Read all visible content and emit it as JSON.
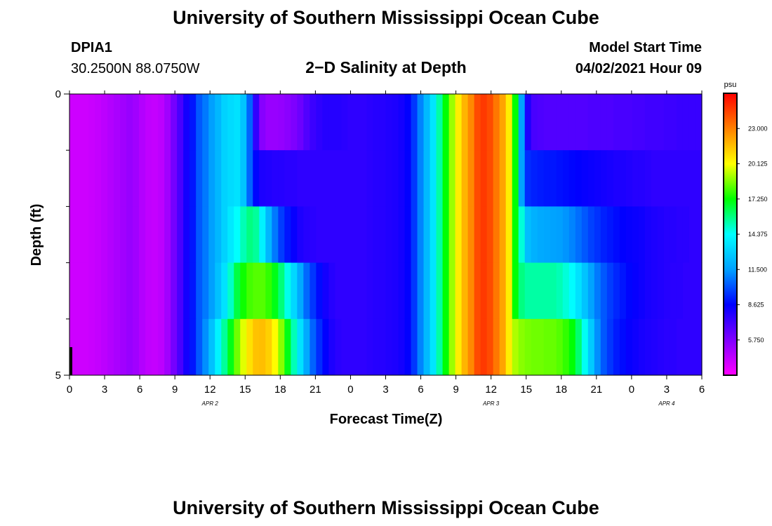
{
  "header": {
    "title": "University of Southern Mississippi Ocean Cube",
    "station_id": "DPIA1",
    "station_coords": "30.2500N  88.0750W",
    "subtitle": "2−D Salinity at Depth",
    "model_start_label": "Model Start Time",
    "model_start_value": "04/02/2021 Hour 09"
  },
  "footer": {
    "title": "University of Southern Mississippi Ocean Cube"
  },
  "chart_data": {
    "type": "heatmap",
    "title": "2−D Salinity at Depth",
    "xlabel": "Forecast Time(Z)",
    "ylabel": "Depth (ft)",
    "x_tick_labels": [
      "0",
      "3",
      "6",
      "9",
      "12",
      "15",
      "18",
      "21",
      "0",
      "3",
      "6",
      "9",
      "12",
      "15",
      "18",
      "21",
      "0",
      "3",
      "6"
    ],
    "x_day_labels": [
      {
        "label": "APR 2",
        "at_hour": 12
      },
      {
        "label": "APR 3",
        "at_hour": 36
      },
      {
        "label": "APR 4",
        "at_hour": 51
      }
    ],
    "x_range_hours": [
      0,
      54
    ],
    "x_start_date": "04/02/2021 00Z",
    "y_tick_labels": [
      {
        "value": 0,
        "label": "0"
      },
      {
        "value": 5,
        "label": "5"
      }
    ],
    "y_range": [
      0,
      5
    ],
    "y_minor_ticks": [
      1,
      2,
      3,
      4
    ],
    "colorbar": {
      "unit": "psu",
      "tick_values": [
        5.75,
        8.625,
        11.5,
        14.375,
        17.25,
        20.125,
        23.0
      ],
      "tick_labels": [
        "5.750",
        "8.625",
        "11.500",
        "14.375",
        "17.250",
        "20.125",
        "23.000"
      ],
      "range": [
        2.875,
        25.875
      ],
      "colors": [
        "#ff00ff",
        "#8000ff",
        "#0000ff",
        "#00a0ff",
        "#00ffff",
        "#00ff00",
        "#ffff00",
        "#ff8000",
        "#ff0000"
      ]
    },
    "depth_layers": [
      "0-1",
      "1-2",
      "2-3",
      "3-4",
      "4-5"
    ],
    "salinity_psu": [
      [
        4.0,
        4.0,
        4.0,
        4.1,
        4.2,
        4.4,
        4.6,
        4.8,
        5.0,
        5.2,
        5.0,
        4.6,
        4.3,
        4.2,
        4.4,
        5.0,
        6.0,
        7.0,
        8.2,
        9.0,
        10.2,
        10.8,
        11.5,
        12.2,
        13.0,
        13.3,
        13.5,
        12.6,
        10.4,
        7.5,
        5.6,
        5.2,
        5.2,
        5.3,
        5.5,
        5.8,
        6.2,
        6.8,
        7.3,
        7.6,
        7.8,
        7.8,
        7.8,
        7.7,
        7.6,
        7.6,
        7.6,
        7.7,
        7.8,
        7.8,
        7.9,
        8.0,
        8.2,
        8.6,
        9.6,
        11.0,
        12.3,
        13.6,
        15.4,
        17.2,
        19.0,
        20.5,
        21.8,
        22.8,
        24.2,
        24.6,
        24.2,
        23.2,
        22.2,
        20.5,
        17.2,
        11.6,
        8.0,
        7.0,
        6.9,
        6.8,
        6.8,
        6.8,
        6.8,
        6.8,
        6.8,
        6.8,
        6.9,
        6.9,
        6.9,
        6.9,
        7.0,
        7.0,
        7.0,
        7.1,
        7.1,
        7.2,
        7.2,
        7.2,
        7.3,
        7.3,
        7.4,
        7.4,
        7.4,
        7.4
      ],
      [
        4.0,
        4.0,
        4.0,
        4.1,
        4.2,
        4.4,
        4.6,
        4.8,
        5.0,
        5.2,
        5.0,
        4.6,
        4.3,
        4.2,
        4.4,
        5.0,
        6.0,
        7.0,
        8.2,
        9.0,
        10.2,
        10.8,
        11.5,
        12.2,
        13.0,
        13.3,
        13.5,
        12.6,
        10.4,
        8.7,
        8.0,
        7.9,
        7.8,
        7.8,
        7.7,
        7.7,
        7.6,
        7.6,
        7.6,
        7.6,
        7.6,
        7.6,
        7.6,
        7.6,
        7.6,
        7.6,
        7.6,
        7.7,
        7.8,
        7.8,
        7.9,
        8.0,
        8.2,
        8.6,
        9.6,
        11.0,
        12.3,
        13.6,
        15.4,
        17.2,
        19.0,
        20.5,
        21.8,
        22.8,
        24.2,
        24.6,
        24.2,
        23.2,
        22.2,
        20.5,
        17.2,
        11.6,
        9.4,
        9.2,
        9.1,
        9.0,
        9.0,
        8.9,
        8.8,
        8.7,
        8.6,
        8.5,
        8.4,
        8.3,
        8.2,
        8.1,
        8.0,
        8.0,
        7.9,
        7.8,
        7.8,
        7.7,
        7.6,
        7.6,
        7.6,
        7.6,
        7.6,
        7.6,
        7.6,
        7.6
      ],
      [
        4.0,
        4.0,
        4.0,
        4.1,
        4.2,
        4.4,
        4.6,
        4.8,
        5.0,
        5.2,
        5.0,
        4.6,
        4.3,
        4.2,
        4.4,
        5.0,
        6.0,
        7.0,
        8.2,
        9.0,
        10.2,
        10.8,
        11.5,
        12.2,
        13.0,
        13.7,
        14.4,
        15.2,
        15.8,
        15.5,
        14.0,
        12.2,
        10.8,
        9.7,
        9.0,
        8.5,
        8.0,
        7.8,
        7.7,
        7.6,
        7.6,
        7.6,
        7.6,
        7.6,
        7.6,
        7.6,
        7.6,
        7.7,
        7.8,
        7.8,
        7.9,
        8.0,
        8.2,
        8.6,
        9.6,
        11.0,
        12.3,
        13.6,
        15.4,
        17.2,
        19.0,
        20.5,
        21.8,
        22.8,
        24.2,
        24.6,
        24.2,
        23.2,
        22.2,
        20.5,
        17.2,
        14.8,
        12.4,
        12.0,
        11.8,
        11.7,
        11.6,
        11.5,
        11.3,
        11.0,
        10.6,
        10.2,
        9.8,
        9.5,
        9.2,
        9.0,
        8.8,
        8.6,
        8.5,
        8.4,
        8.3,
        8.1,
        8.0,
        7.9,
        7.8,
        7.8,
        7.7,
        7.7,
        7.6,
        7.6
      ],
      [
        4.0,
        4.0,
        4.0,
        4.1,
        4.2,
        4.4,
        4.6,
        4.8,
        5.0,
        5.2,
        5.0,
        4.6,
        4.3,
        4.2,
        4.4,
        5.0,
        6.0,
        7.0,
        8.2,
        9.0,
        10.2,
        10.8,
        11.5,
        12.5,
        13.5,
        15.0,
        16.5,
        17.4,
        18.0,
        18.2,
        18.2,
        17.8,
        17.0,
        15.9,
        14.6,
        13.2,
        11.8,
        10.5,
        9.6,
        8.8,
        8.2,
        7.8,
        7.6,
        7.6,
        7.6,
        7.6,
        7.6,
        7.7,
        7.8,
        7.8,
        7.9,
        8.0,
        8.2,
        8.6,
        9.6,
        11.0,
        12.3,
        13.6,
        15.4,
        17.2,
        19.0,
        20.5,
        21.8,
        22.8,
        24.2,
        24.6,
        24.2,
        23.2,
        22.2,
        20.5,
        17.2,
        15.8,
        15.4,
        15.4,
        15.4,
        15.4,
        15.4,
        15.2,
        14.8,
        14.3,
        13.5,
        12.6,
        11.6,
        10.8,
        10.2,
        9.7,
        9.3,
        9.0,
        8.7,
        8.5,
        8.3,
        8.1,
        8.0,
        7.9,
        7.8,
        7.7,
        7.7,
        7.6,
        7.6,
        7.6
      ],
      [
        4.0,
        4.0,
        4.0,
        4.1,
        4.2,
        4.4,
        4.6,
        4.8,
        5.0,
        5.2,
        5.0,
        4.6,
        4.3,
        4.2,
        4.4,
        5.0,
        6.0,
        7.0,
        8.2,
        9.0,
        10.2,
        11.2,
        12.5,
        14.0,
        15.5,
        17.0,
        18.5,
        19.8,
        20.8,
        21.5,
        21.6,
        21.2,
        20.2,
        18.8,
        17.0,
        15.2,
        13.5,
        11.8,
        10.4,
        9.4,
        8.6,
        8.0,
        7.7,
        7.6,
        7.6,
        7.6,
        7.6,
        7.7,
        7.8,
        7.8,
        7.9,
        8.0,
        8.2,
        8.6,
        9.6,
        11.0,
        12.3,
        13.6,
        15.4,
        17.2,
        19.0,
        20.5,
        21.8,
        22.8,
        24.2,
        24.6,
        24.2,
        23.2,
        22.2,
        20.5,
        19.2,
        18.8,
        18.6,
        18.5,
        18.5,
        18.4,
        18.4,
        18.2,
        17.8,
        17.2,
        16.0,
        14.5,
        12.8,
        11.2,
        10.2,
        9.6,
        9.1,
        8.8,
        8.5,
        8.3,
        8.1,
        8.0,
        7.9,
        7.8,
        7.7,
        7.7,
        7.6,
        7.6,
        7.6,
        7.6
      ]
    ]
  }
}
